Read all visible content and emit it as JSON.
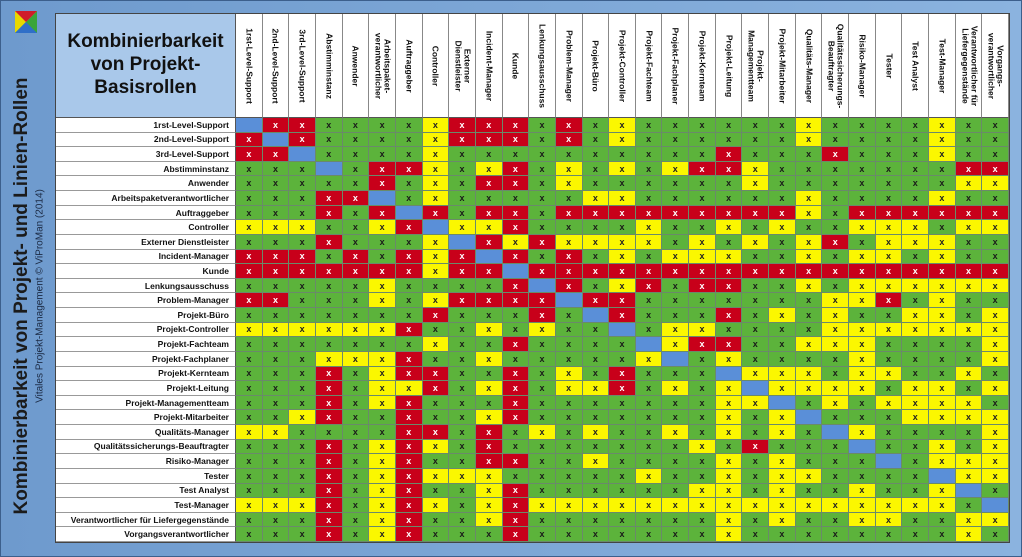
{
  "title": "Kombinierbarkeit von Projekt-Basisrollen",
  "side_title": "Kombinierbarkeit von Projekt- und Linien-Rollen",
  "side_subtitle": "Vitales Projekt-Management © ViProMan (2014)",
  "mark": "x",
  "colors": {
    "g": "#5cb33b",
    "y": "#fbf700",
    "r": "#c8001a",
    "b": "#5a8fd8"
  },
  "roles": [
    "1rst-Level-Support",
    "2nd-Level-Support",
    "3rd-Level-Support",
    "Abstimminstanz",
    "Anwender",
    "Arbeitspaketverantwortlicher",
    "Auftraggeber",
    "Controller",
    "Externer Dienstleister",
    "Incident-Manager",
    "Kunde",
    "Lenkungsausschuss",
    "Problem-Manager",
    "Projekt-Büro",
    "Projekt-Controller",
    "Projekt-Fachteam",
    "Projekt-Fachplaner",
    "Projekt-Kernteam",
    "Projekt-Leitung",
    "Projekt-Managementteam",
    "Projekt-Mitarbeiter",
    "Qualitäts-Manager",
    "Qualitätssicherungs-Beauftragter",
    "Risiko-Manager",
    "Tester",
    "Test Analyst",
    "Test-Manager",
    "Verantwortlicher für Liefergegenstände",
    "Vorgangsverantwortlicher"
  ],
  "header_labels": [
    "1rst-Level-Support",
    "2nd-Level-Support",
    "3rd-Level-Support",
    "Abstimminstanz",
    "Anwender",
    "Arbeitspaket-\nverantwortlicher",
    "Auftraggeber",
    "Controller",
    "Externer\nDienstleister",
    "Incident-Manager",
    "Kunde",
    "Lenkungsausschuss",
    "Problem-Manager",
    "Projekt-Büro",
    "Projekt-Controller",
    "Projekt-Fachteam",
    "Projekt-Fachplaner",
    "Projekt-Kernteam",
    "Projekt-Leitung",
    "Projekt-\nManagementteam",
    "Projekt-Mitarbeiter",
    "Qualitäts-Manager",
    "Qualitätssicherungs-\nBeauftragter",
    "Risiko-Manager",
    "Tester",
    "Test Analyst",
    "Test-Manager",
    "Verantwortlicher für\nLiefergegenstände",
    "Vorgangs-\nverantwortlicher"
  ],
  "matrix": [
    "brrggggyrrrgrgyggggggyggggygg",
    "rbrggggyrrrgrgyggggggyggggygg",
    "rrbggggyggggggggggrgggrgggygg",
    "gggbgrrygyrgygygyrrygggggggrr",
    "gggggrgygrrgyggggggygggggggyy",
    "gggrrbgygggggyyggggggyggggygg",
    "gggrgrbrgrrgrrrrrrrrrygrrrrrr",
    "yyyggyrbyyrggggyggygyggyyygyy",
    "gggrgggybryryyyygygygyrgyyygg",
    "rrrgrgryrbrgrgygyyyggygyygygg",
    "rrrrrrryrrbrrrrrrrrrrrrrrrrrr",
    "gggggyggggrbrgyrgrrggygyyyyyy",
    "rrgggygyrrrrbrrgggggggyyrgygg",
    "gggggggrgggrgbrgggrgygyggyygy",
    "yyyyyyrggygyggbgyyggggyyyyyyy",
    "gggggggyggrggggbyrrggyyyggggy",
    "gggyyyrggygggggybgyggggyggggy",
    "gggrgyrrggrgygrgggbyyygyyggyg",
    "gggrgyyrgyrgyyrgygybyyyygyygy",
    "gggrgyrgggrgggggggyybgygyyyyg",
    "ggyrggrggyrgggggggygybgggyyyy",
    "yyggggrrgrgygyggygygygbyggggy",
    "gggrgyrygrgggggggygrgggbggygy",
    "gggrgyrggrrggyggggygygggbgyyy",
    "gggrgyryyygggggyggygyyggggbyy",
    "gggrgyrggyrggggggyygyggyggybg",
    "yyyrgyrygyryyyyyyyyyyyyyyyygb",
    "gggrgyrggyrgggggggygyggyyggyy",
    "gggrgyrgggrgggggggyggggggggyg"
  ]
}
